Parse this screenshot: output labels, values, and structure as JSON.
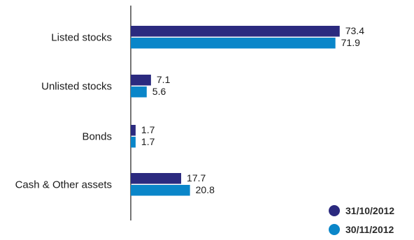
{
  "chart_data": {
    "type": "bar",
    "orientation": "horizontal",
    "categories": [
      "Listed stocks",
      "Unlisted stocks",
      "Bonds",
      "Cash & Other assets"
    ],
    "series": [
      {
        "name": "31/10/2012",
        "values": [
          73.4,
          7.1,
          1.7,
          17.7
        ],
        "color": "#2b2a7f"
      },
      {
        "name": "30/11/2012",
        "values": [
          71.9,
          5.6,
          1.7,
          20.8
        ],
        "color": "#0a86c9"
      }
    ],
    "value_labels": [
      [
        "73.4",
        "7.1",
        "1.7",
        "17.7"
      ],
      [
        "71.9",
        "5.6",
        "1.7",
        "20.8"
      ]
    ],
    "xlim": [
      0,
      100
    ],
    "grid": false,
    "legend_position": "bottom-right",
    "title": "",
    "xlabel": "",
    "ylabel": ""
  }
}
